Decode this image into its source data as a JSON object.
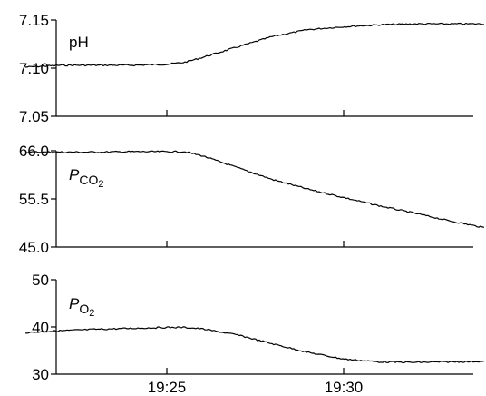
{
  "chart_data": {
    "type": "line",
    "x_ticks": [
      "19:25",
      "19:30"
    ],
    "panels": [
      {
        "label": "pH",
        "label_sub": "",
        "ylim": [
          7.05,
          7.15
        ],
        "yticks": [
          "7.15",
          "7.10",
          "7.05"
        ],
        "x": [
          "19:21",
          "19:22",
          "19:23",
          "19:24",
          "19:25",
          "19:25:30",
          "19:26",
          "19:27",
          "19:28",
          "19:29",
          "19:30",
          "19:31",
          "19:32",
          "19:33",
          "19:34"
        ],
        "y": [
          7.101,
          7.103,
          7.103,
          7.103,
          7.104,
          7.106,
          7.111,
          7.122,
          7.133,
          7.14,
          7.143,
          7.145,
          7.146,
          7.146,
          7.146
        ]
      },
      {
        "label": "P",
        "label_sub": "CO2",
        "ylim": [
          45.0,
          66.0
        ],
        "yticks": [
          "66.0",
          "55.5",
          "45.0"
        ],
        "x": [
          "19:21",
          "19:22",
          "19:23",
          "19:24",
          "19:25",
          "19:25:30",
          "19:26",
          "19:27",
          "19:28",
          "19:29",
          "19:30",
          "19:31",
          "19:32",
          "19:33",
          "19:34"
        ],
        "y": [
          65.7,
          65.7,
          65.7,
          65.8,
          65.8,
          65.8,
          64.9,
          62.3,
          59.7,
          57.6,
          55.8,
          54.0,
          52.4,
          50.7,
          49.2
        ]
      },
      {
        "label": "P",
        "label_sub": "O2",
        "ylim": [
          30,
          50
        ],
        "yticks": [
          "50",
          "40",
          "30"
        ],
        "x": [
          "19:21",
          "19:22",
          "19:23",
          "19:24",
          "19:25",
          "19:25:30",
          "19:26",
          "19:27",
          "19:28",
          "19:29",
          "19:30",
          "19:31",
          "19:32",
          "19:33",
          "19:34"
        ],
        "y": [
          38.8,
          39.2,
          39.5,
          39.7,
          39.9,
          39.9,
          39.6,
          38.3,
          36.4,
          34.6,
          33.2,
          32.6,
          32.5,
          32.6,
          32.7
        ]
      }
    ]
  }
}
